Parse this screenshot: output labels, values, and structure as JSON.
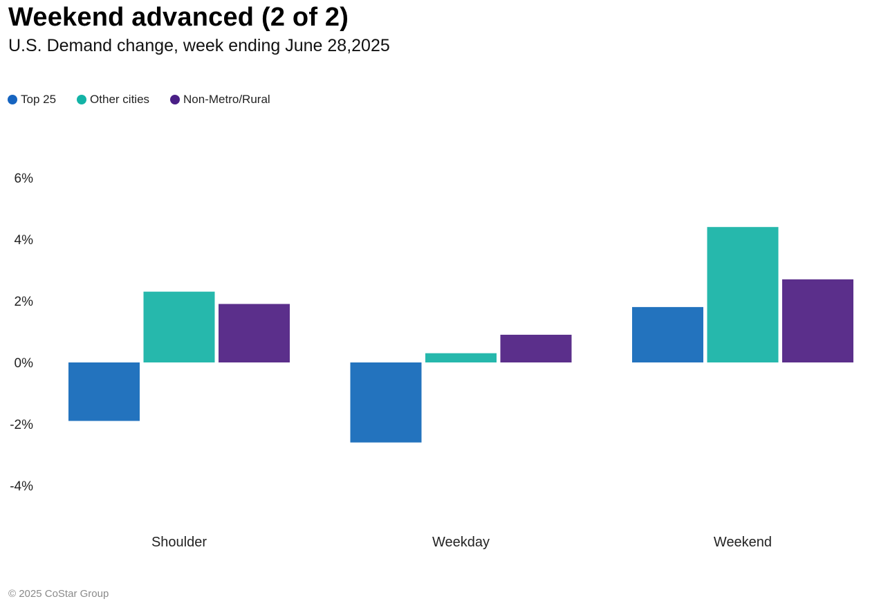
{
  "chart_data": {
    "type": "bar",
    "title": "Weekend advanced (2 of 2)",
    "subtitle": "U.S. Demand change, week ending June 28,2025",
    "categories": [
      "Shoulder",
      "Weekday",
      "Weekend"
    ],
    "series": [
      {
        "name": "Top 25",
        "color": "#2373BE",
        "values": [
          -1.9,
          -2.6,
          1.8
        ]
      },
      {
        "name": "Other cities",
        "color": "#26B8AC",
        "values": [
          2.3,
          0.3,
          4.4
        ]
      },
      {
        "name": "Non-Metro/Rural",
        "color": "#5B2F8B",
        "values": [
          1.9,
          0.9,
          2.7
        ]
      }
    ],
    "yticks": [
      "6%",
      "4%",
      "2%",
      "0%",
      "-2%",
      "-4%"
    ],
    "ytick_values": [
      6,
      4,
      2,
      0,
      -2,
      -4
    ],
    "ylim": [
      -4,
      6
    ],
    "ylabel": "",
    "xlabel": "",
    "legend_position": "top-left",
    "grid": false
  },
  "legend_dot_colors": {
    "top25": "#1664C0",
    "other": "#13B3A6",
    "rural": "#4A1F86"
  },
  "footer": {
    "copyright": "© 2025 CoStar Group"
  }
}
